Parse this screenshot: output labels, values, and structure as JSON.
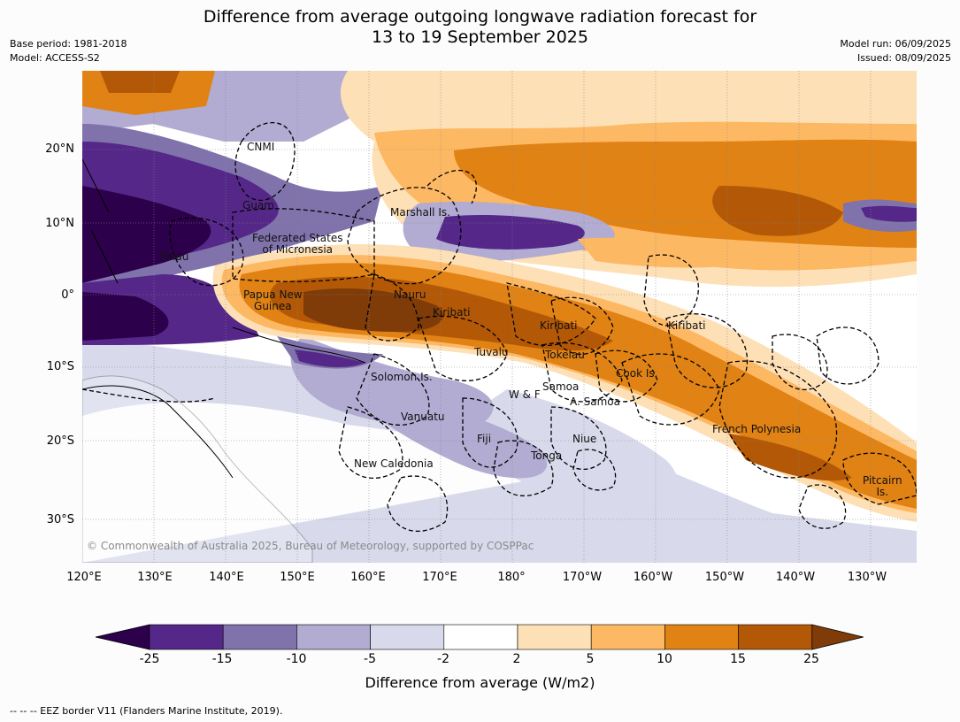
{
  "header": {
    "title_line1": "Difference from average outgoing longwave radiation forecast for",
    "title_line2": "13 to 19 September 2025",
    "base_period": "Base period: 1981-2018",
    "model": "Model: ACCESS-S2",
    "model_run": "Model run: 06/09/2025",
    "issued": "Issued: 08/09/2025"
  },
  "axes": {
    "lat_ticks": [
      "20°N",
      "10°N",
      "0°",
      "10°S",
      "20°S",
      "30°S"
    ],
    "lon_ticks": [
      "120°E",
      "130°E",
      "140°E",
      "150°E",
      "160°E",
      "170°E",
      "180°",
      "170°W",
      "160°W",
      "150°W",
      "140°W",
      "130°W"
    ]
  },
  "regions": {
    "cnmi": "CNMI",
    "guam": "Guam",
    "palau": "Palau",
    "marshall": "Marshall Is.",
    "fsm_1": "Federated States",
    "fsm_2": "of Micronesia",
    "png_1": "Papua New",
    "png_2": "Guinea",
    "nauru": "Nauru",
    "kiribati_west": "Kiribati",
    "kiribati_central": "Kiribati",
    "kiribati_east": "Kiribati",
    "tuvalu": "Tuvalu",
    "tokelau": "Tokelau",
    "solomon": "Solomon Is.",
    "wallis": "W & F",
    "samoa": "Samoa",
    "am_samoa": "A. Samoa",
    "cook": "Cook Is.",
    "vanuatu": "Vanuatu",
    "fiji": "Fiji",
    "niue": "Niue",
    "tonga": "Tonga",
    "new_caledonia": "New Caledonia",
    "french_polynesia": "French Polynesia",
    "pitcairn_1": "Pitcairn",
    "pitcairn_2": "Is."
  },
  "copyright": "© Commonwealth of Australia 2025, Bureau of Meteorology, supported by COSPPac",
  "colorbar": {
    "ticks": [
      "-25",
      "-15",
      "-10",
      "-5",
      "-2",
      "2",
      "5",
      "10",
      "15",
      "25"
    ],
    "label": "Difference from average (W/m2)",
    "colors": [
      "#2d004b",
      "#542788",
      "#8073ac",
      "#b2abd2",
      "#d8daeb",
      "#ffffff",
      "#fee0b6",
      "#fdb863",
      "#e08214",
      "#b35806",
      "#7f3b08"
    ]
  },
  "footer": "--  --  -- EEZ border V11 (Flanders Marine Institute, 2019)."
}
